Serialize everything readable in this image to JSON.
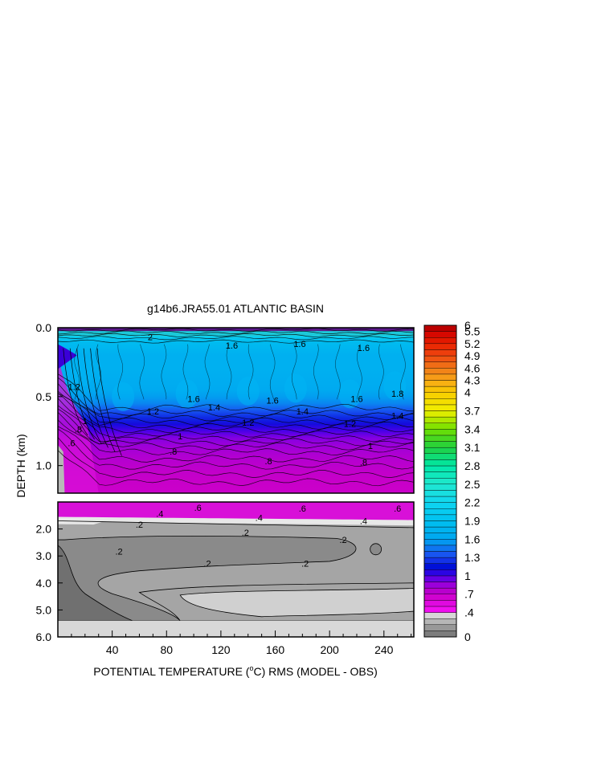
{
  "chart_data": {
    "type": "heatmap",
    "title": "g14b6.JRA55.01 ATLANTIC BASIN",
    "xlabel_prefix": "POTENTIAL TEMPERATURE (",
    "xlabel_unit_sup": "o",
    "xlabel_suffix": "C) RMS (MODEL - OBS)",
    "ylabel": "DEPTH (km)",
    "x_ticks": [
      "40",
      "80",
      "120",
      "160",
      "200",
      "240"
    ],
    "x_tick_values": [
      40,
      80,
      120,
      160,
      200,
      240
    ],
    "xlim": [
      0,
      262
    ],
    "upper_panel": {
      "ylim": [
        0.0,
        1.2
      ],
      "y_ticks": [
        "0.0",
        "0.5",
        "1.0"
      ],
      "y_tick_values": [
        0.0,
        0.5,
        1.0
      ],
      "contour_labels": [
        {
          "text": "2",
          "x": 68,
          "y": 0.09
        },
        {
          "text": "1.6",
          "x": 128,
          "y": 0.15
        },
        {
          "text": "1.6",
          "x": 178,
          "y": 0.14
        },
        {
          "text": "1.6",
          "x": 225,
          "y": 0.17
        },
        {
          "text": "1.2",
          "x": 12,
          "y": 0.45
        },
        {
          "text": "1.6",
          "x": 100,
          "y": 0.54
        },
        {
          "text": "1.6",
          "x": 158,
          "y": 0.55
        },
        {
          "text": "1.6",
          "x": 220,
          "y": 0.54
        },
        {
          "text": "1.8",
          "x": 250,
          "y": 0.5
        },
        {
          "text": "1.4",
          "x": 115,
          "y": 0.6
        },
        {
          "text": "1.4",
          "x": 180,
          "y": 0.63
        },
        {
          "text": "1.2",
          "x": 70,
          "y": 0.63
        },
        {
          "text": "1.2",
          "x": 140,
          "y": 0.71
        },
        {
          "text": "1.2",
          "x": 215,
          "y": 0.72
        },
        {
          "text": "1.4",
          "x": 250,
          "y": 0.66
        },
        {
          "text": "1",
          "x": 20,
          "y": 0.7
        },
        {
          "text": ".8",
          "x": 15,
          "y": 0.76
        },
        {
          "text": ".6",
          "x": 10,
          "y": 0.86
        },
        {
          "text": "1",
          "x": 90,
          "y": 0.81
        },
        {
          "text": ".8",
          "x": 85,
          "y": 0.92
        },
        {
          "text": ".8",
          "x": 155,
          "y": 0.99
        },
        {
          "text": ".8",
          "x": 225,
          "y": 1.0
        },
        {
          "text": "1",
          "x": 230,
          "y": 0.88
        }
      ]
    },
    "lower_panel": {
      "ylim": [
        1.0,
        6.0
      ],
      "y_ticks": [
        "2.0",
        "3.0",
        "4.0",
        "5.0",
        "6.0"
      ],
      "y_tick_values": [
        2.0,
        3.0,
        4.0,
        5.0,
        6.0
      ],
      "contour_labels": [
        {
          "text": ".6",
          "x": 103,
          "y": 1.33
        },
        {
          "text": ".6",
          "x": 180,
          "y": 1.35
        },
        {
          "text": ".6",
          "x": 250,
          "y": 1.35
        },
        {
          "text": ".4",
          "x": 75,
          "y": 1.55
        },
        {
          "text": ".4",
          "x": 148,
          "y": 1.7
        },
        {
          "text": ".4",
          "x": 225,
          "y": 1.82
        },
        {
          "text": ".2",
          "x": 60,
          "y": 1.95
        },
        {
          "text": ".2",
          "x": 138,
          "y": 2.25
        },
        {
          "text": ".2",
          "x": 210,
          "y": 2.52
        },
        {
          "text": ".2",
          "x": 45,
          "y": 2.95
        },
        {
          "text": ".2",
          "x": 110,
          "y": 3.4
        },
        {
          "text": ".2",
          "x": 182,
          "y": 3.4
        }
      ]
    },
    "colorbar": {
      "levels": [
        0,
        0.1,
        0.2,
        0.3,
        0.4,
        0.5,
        0.6,
        0.7,
        0.8,
        0.9,
        1.0,
        1.1,
        1.2,
        1.3,
        1.4,
        1.5,
        1.6,
        1.7,
        1.8,
        1.9,
        2.0,
        2.1,
        2.2,
        2.3,
        2.4,
        2.5,
        2.6,
        2.7,
        2.8,
        2.9,
        3.0,
        3.1,
        3.2,
        3.3,
        3.4,
        3.5,
        3.6,
        3.7,
        3.8,
        3.9,
        4.0,
        4.15,
        4.3,
        4.45,
        4.6,
        4.75,
        4.9,
        5.05,
        5.2,
        5.35,
        5.5,
        6.0
      ],
      "labels": [
        "0",
        ".4",
        ".7",
        "1",
        "1.3",
        "1.6",
        "1.9",
        "2.2",
        "2.5",
        "2.8",
        "3.1",
        "3.4",
        "3.7",
        "4",
        "4.3",
        "4.6",
        "4.9",
        "5.2",
        "5.5",
        "6"
      ],
      "label_values": [
        0,
        0.4,
        0.7,
        1.0,
        1.3,
        1.6,
        1.9,
        2.2,
        2.5,
        2.8,
        3.1,
        3.4,
        3.7,
        4.0,
        4.3,
        4.6,
        4.9,
        5.2,
        5.5,
        6.0
      ],
      "stops": [
        {
          "v": 0.0,
          "c": "#707070"
        },
        {
          "v": 0.2,
          "c": "#a5a5a5"
        },
        {
          "v": 0.4,
          "c": "#e8e8e8"
        },
        {
          "v": 0.45,
          "c": "#f010f0"
        },
        {
          "v": 0.7,
          "c": "#c800c8"
        },
        {
          "v": 0.9,
          "c": "#8c00e0"
        },
        {
          "v": 1.0,
          "c": "#4000e8"
        },
        {
          "v": 1.15,
          "c": "#0010d8"
        },
        {
          "v": 1.3,
          "c": "#1d45f0"
        },
        {
          "v": 1.6,
          "c": "#00a6f0"
        },
        {
          "v": 1.9,
          "c": "#00c0f0"
        },
        {
          "v": 2.2,
          "c": "#10d6f0"
        },
        {
          "v": 2.5,
          "c": "#20e8d0"
        },
        {
          "v": 2.8,
          "c": "#00e8a8"
        },
        {
          "v": 3.1,
          "c": "#20d040"
        },
        {
          "v": 3.4,
          "c": "#70e000"
        },
        {
          "v": 3.7,
          "c": "#f0f000"
        },
        {
          "v": 4.0,
          "c": "#f8cc00"
        },
        {
          "v": 4.3,
          "c": "#f8a818"
        },
        {
          "v": 4.6,
          "c": "#f07818"
        },
        {
          "v": 4.9,
          "c": "#f04810"
        },
        {
          "v": 5.2,
          "c": "#e82000"
        },
        {
          "v": 5.5,
          "c": "#d00000"
        },
        {
          "v": 6.0,
          "c": "#a80000"
        }
      ]
    },
    "colors": {
      "sea_floor": "#d8d8d8",
      "lower_purple": "#d810d8",
      "lower_white_band": "#e8e8e8",
      "lower_mid_gray": "#a5a5a5",
      "lower_dark_gray": "#8a8a8a",
      "lower_light_gray": "#d0d0d0",
      "lower_darkest": "#707070"
    }
  }
}
